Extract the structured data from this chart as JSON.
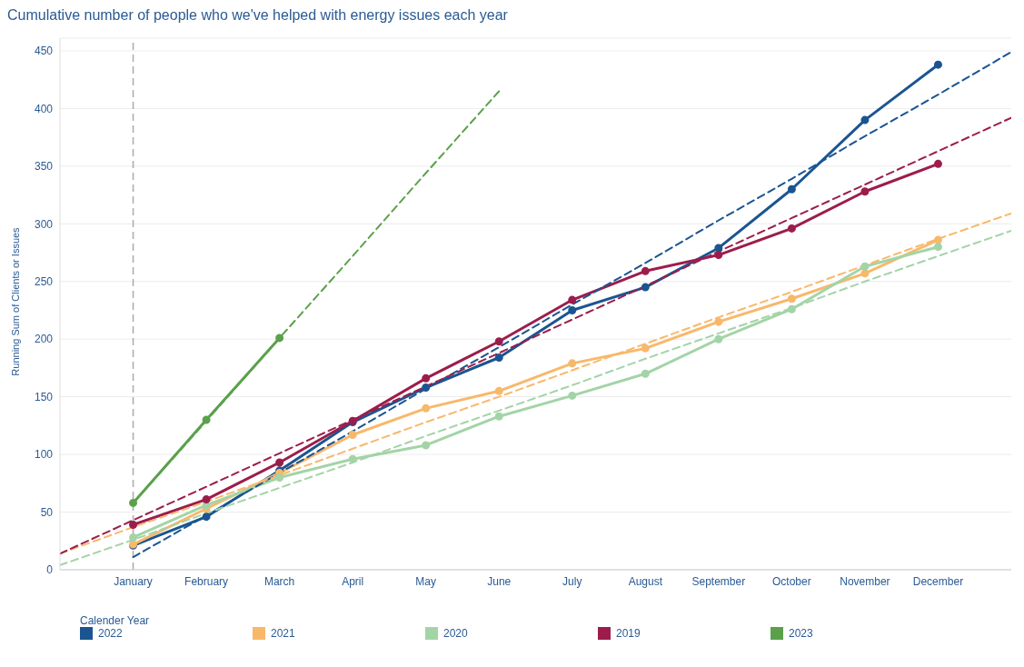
{
  "chart_data": {
    "type": "line",
    "title": "Cumulative number of people who we've helped with energy issues each year",
    "ylabel": "Running Sum of Clients or Issues",
    "legend_title": "Calender Year",
    "legend": "bottom",
    "grid": "y",
    "marker": "circle",
    "line_style": "solid",
    "categories": [
      null,
      "January",
      "February",
      "March",
      "April",
      "May",
      "June",
      "July",
      "August",
      "September",
      "October",
      "November",
      "December",
      null
    ],
    "ylim": [
      0,
      461
    ],
    "yticks": [
      0,
      50,
      100,
      150,
      200,
      250,
      300,
      350,
      400,
      450
    ],
    "ref_lines": [
      {
        "axis": "x",
        "value": "January",
        "label": null,
        "color": "#aaaaaa",
        "line_style": "dashed"
      }
    ],
    "series": [
      {
        "name": "2022",
        "color": "#1a5591",
        "values": [
          null,
          21,
          46,
          86,
          128,
          158,
          184,
          225,
          245,
          279,
          330,
          390,
          438,
          null
        ]
      },
      {
        "name": "2021",
        "color": "#f8b86b",
        "values": [
          null,
          22,
          53,
          84,
          117,
          140,
          155,
          179,
          192,
          215,
          235,
          257,
          286,
          null
        ]
      },
      {
        "name": "2020",
        "color": "#a3d4a7",
        "values": [
          null,
          28,
          56,
          80,
          96,
          108,
          133,
          151,
          170,
          200,
          226,
          263,
          280,
          null
        ]
      },
      {
        "name": "2019",
        "color": "#9c1d4c",
        "values": [
          null,
          39,
          61,
          93,
          129,
          166,
          198,
          234,
          259,
          273,
          296,
          328,
          352,
          null
        ]
      },
      {
        "name": "2023",
        "color": "#5ba14b",
        "values": [
          null,
          58,
          130,
          201,
          null,
          null,
          null,
          null,
          null,
          null,
          null,
          null,
          null,
          null
        ]
      },
      {
        "color": "#1a5591",
        "line_style": "dashed",
        "marker": "none",
        "values": [
          null,
          11,
          47,
          84,
          120,
          157,
          193,
          230,
          266,
          303,
          339,
          376,
          412,
          449
        ]
      },
      {
        "color": "#f8b86b",
        "line_style": "dashed",
        "marker": "none",
        "values": [
          14,
          37,
          59,
          82,
          105,
          128,
          150,
          173,
          196,
          219,
          241,
          264,
          287,
          309
        ]
      },
      {
        "color": "#a3d4a7",
        "line_style": "dashed",
        "marker": "none",
        "values": [
          4,
          26,
          49,
          71,
          93,
          116,
          138,
          160,
          183,
          205,
          227,
          250,
          272,
          294
        ]
      },
      {
        "color": "#9c1d4c",
        "line_style": "dashed",
        "marker": "none",
        "values": [
          14,
          43,
          72,
          101,
          130,
          159,
          188,
          217,
          246,
          276,
          305,
          334,
          363,
          392
        ]
      },
      {
        "color": "#5ba14b",
        "line_style": "dashed",
        "marker": "none",
        "values": [
          null,
          58,
          129,
          201,
          272,
          344,
          415,
          null,
          null,
          null,
          null,
          null,
          null,
          null
        ]
      }
    ]
  }
}
